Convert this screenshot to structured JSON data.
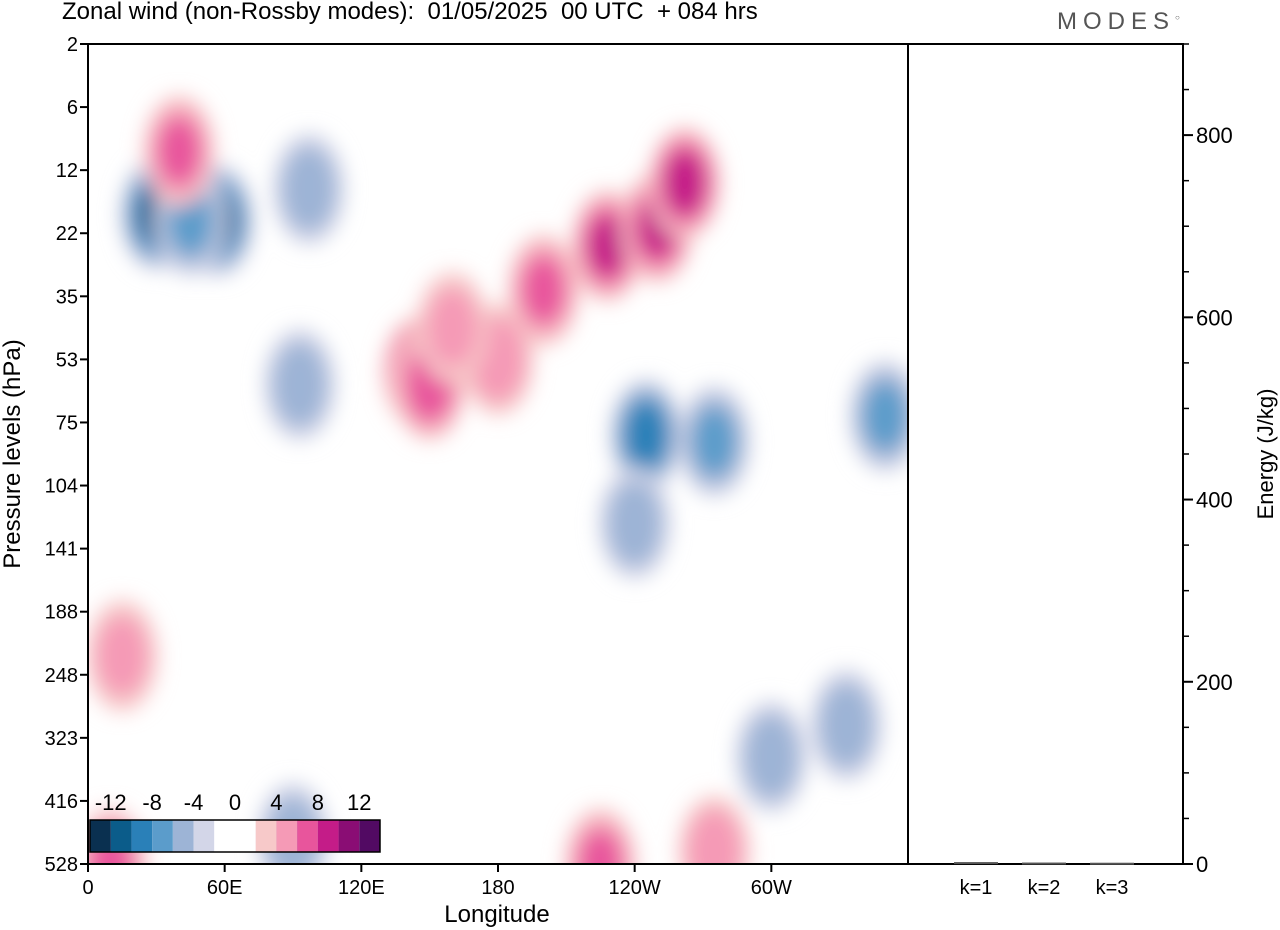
{
  "title": "Zonal wind (non-Rossby modes):  01/05/2025  00 UTC  + 084 hrs",
  "logo": "MODES",
  "chart_data": {
    "type": "heatmap",
    "xlabel": "Longitude",
    "ylabel": "Pressure levels (hPa)",
    "x_ticks": [
      "0",
      "60E",
      "120E",
      "180",
      "120W",
      "60W"
    ],
    "y_ticks": [
      "2",
      "6",
      "12",
      "22",
      "35",
      "53",
      "75",
      "104",
      "141",
      "188",
      "248",
      "323",
      "416",
      "528"
    ],
    "colorbar": {
      "tick_labels": [
        "-12",
        "-8",
        "-4",
        "0",
        "4",
        "8",
        "12"
      ],
      "colors": [
        "#0a3050",
        "#0b5c8a",
        "#2a80b8",
        "#5b9ccb",
        "#9db4d6",
        "#d3d6e8",
        "#ffffff",
        "#ffffff",
        "#f7c9c9",
        "#f59ab6",
        "#e8559c",
        "#c41c88",
        "#8a0d74",
        "#520a63"
      ]
    },
    "right_panel": {
      "type": "bar",
      "ylabel": "Energy (J/kg)",
      "ylim": [
        0,
        900
      ],
      "y_ticks": [
        "0",
        "200",
        "400",
        "600",
        "800"
      ],
      "categories": [
        "k=1",
        "k=2",
        "k=3"
      ],
      "values": [
        1,
        0.5,
        0.3
      ]
    },
    "features": [
      {
        "lon": 145,
        "lev": 5.2,
        "amp": 9
      },
      {
        "lon": 150,
        "lev": 5.4,
        "amp": 7
      },
      {
        "lon": 180,
        "lev": 5.0,
        "amp": 5
      },
      {
        "lon": 200,
        "lev": 3.9,
        "amp": 6
      },
      {
        "lon": 228,
        "lev": 3.2,
        "amp": 8
      },
      {
        "lon": 250,
        "lev": 2.9,
        "amp": 8
      },
      {
        "lon": 262,
        "lev": 2.2,
        "amp": 9
      },
      {
        "lon": 30,
        "lev": 2.7,
        "amp": -10
      },
      {
        "lon": 57,
        "lev": 2.8,
        "amp": -10
      },
      {
        "lon": 45,
        "lev": 2.8,
        "amp": -6
      },
      {
        "lon": 97,
        "lev": 2.3,
        "amp": -5
      },
      {
        "lon": 93,
        "lev": 5.4,
        "amp": -5
      },
      {
        "lon": 245,
        "lev": 6.2,
        "amp": -9
      },
      {
        "lon": 275,
        "lev": 6.3,
        "amp": -6
      },
      {
        "lon": 350,
        "lev": 5.9,
        "amp": -6
      },
      {
        "lon": 300,
        "lev": 11.3,
        "amp": -5
      },
      {
        "lon": 333,
        "lev": 10.8,
        "amp": -5
      },
      {
        "lon": 90,
        "lev": 12.6,
        "amp": -5
      },
      {
        "lon": 10,
        "lev": 13.0,
        "amp": 6
      },
      {
        "lon": 40,
        "lev": 1.7,
        "amp": 6
      },
      {
        "lon": 225,
        "lev": 13.0,
        "amp": 6
      },
      {
        "lon": 275,
        "lev": 12.8,
        "amp": 5
      },
      {
        "lon": 240,
        "lev": 7.6,
        "amp": -5
      },
      {
        "lon": 160,
        "lev": 4.5,
        "amp": 4
      },
      {
        "lon": 15,
        "lev": 9.7,
        "amp": 4
      }
    ]
  }
}
